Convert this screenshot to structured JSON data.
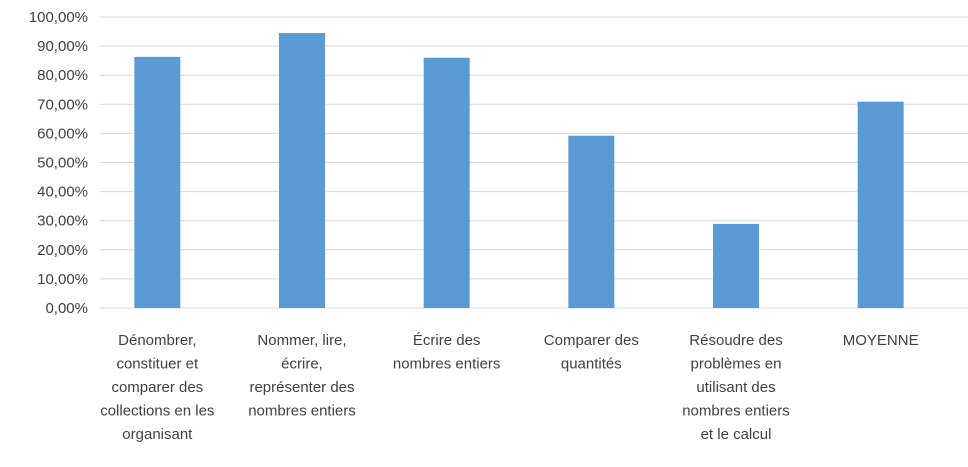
{
  "chart_data": {
    "type": "bar",
    "categories": [
      [
        "Dénombrer,",
        "constituer et",
        "comparer des",
        "collections en les",
        "organisant"
      ],
      [
        "Nommer, lire,",
        "écrire,",
        "représenter des",
        "nombres entiers"
      ],
      [
        "Écrire des",
        "nombres entiers"
      ],
      [
        "Comparer des",
        "quantités"
      ],
      [
        "Résoudre des",
        "problèmes en",
        "utilisant des",
        "nombres entiers",
        "et le calcul"
      ],
      [
        "MOYENNE"
      ]
    ],
    "values": [
      86.3,
      94.5,
      86.0,
      59.2,
      28.9,
      70.9
    ],
    "ylim": [
      0,
      100
    ],
    "ytick_step": 10,
    "ytick_labels": [
      "0,00%",
      "10,00%",
      "20,00%",
      "30,00%",
      "40,00%",
      "50,00%",
      "60,00%",
      "70,00%",
      "80,00%",
      "90,00%",
      "100,00%"
    ],
    "grid": true,
    "legend": "none",
    "bar_color": "#5b9bd5",
    "grid_color": "#d9d9d9",
    "text_color": "#404040"
  }
}
